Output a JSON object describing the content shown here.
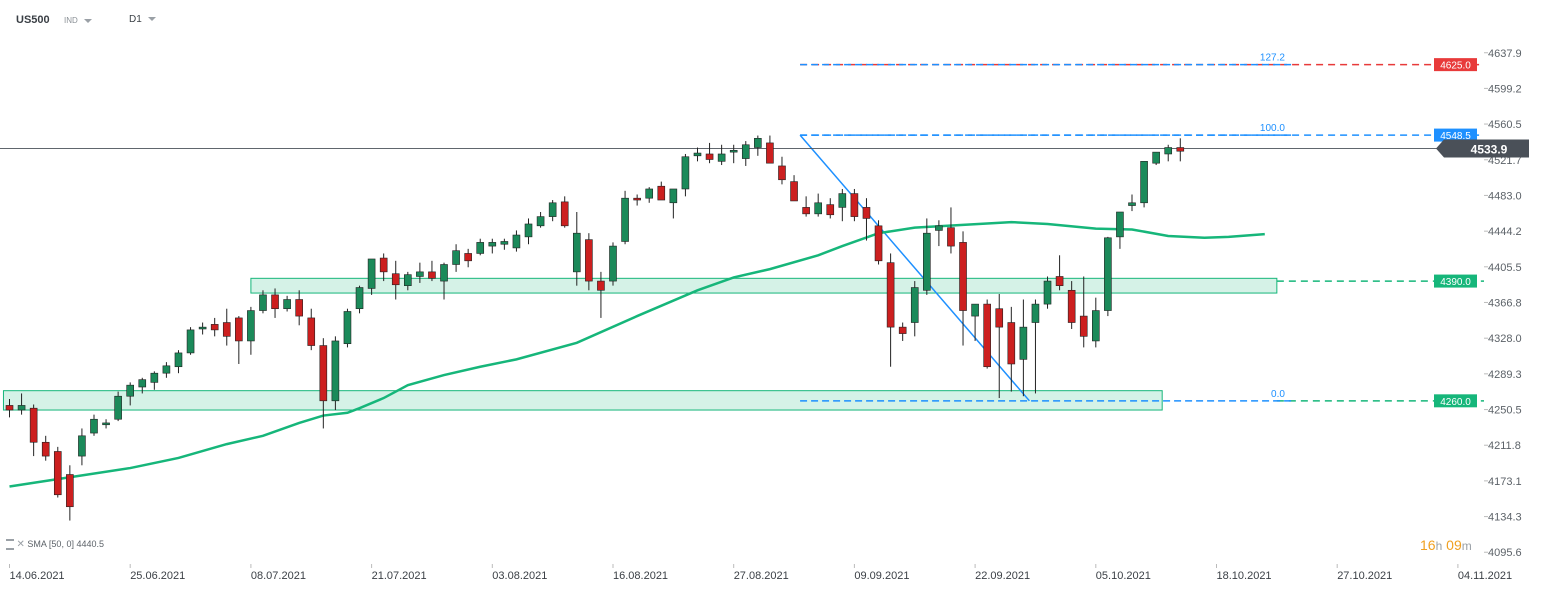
{
  "header": {
    "symbol": "US500",
    "instrument_type": "IND",
    "timeframe": "D1"
  },
  "countdown": {
    "hours": "16",
    "hours_unit": "h",
    "minutes": "09",
    "minutes_unit": "m"
  },
  "sma_legend": {
    "text": "SMA [50, 0] 4440.5"
  },
  "colors": {
    "bull": "#1b8a5a",
    "bear": "#cc1f1f",
    "sma": "#16b67a",
    "fib": "#1e90ff",
    "zone": "#16b67a",
    "red_level": "#e83a3a",
    "current": "#4a5058"
  },
  "chart_data": {
    "type": "candlestick",
    "symbol": "US500",
    "timeframe": "D1",
    "ylim": [
      4085,
      4655
    ],
    "y_ticks": [
      4637.9,
      4599.2,
      4560.5,
      4521.7,
      4483.0,
      4444.2,
      4405.5,
      4366.8,
      4328.0,
      4289.3,
      4250.5,
      4211.8,
      4173.1,
      4134.3,
      4095.6
    ],
    "x_tick_labels": [
      "14.06.2021",
      "25.06.2021",
      "08.07.2021",
      "21.07.2021",
      "03.08.2021",
      "16.08.2021",
      "27.08.2021",
      "09.09.2021",
      "22.09.2021",
      "05.10.2021",
      "18.10.2021",
      "27.10.2021",
      "04.11.2021"
    ],
    "x_tick_index": [
      0,
      10,
      20,
      30,
      40,
      50,
      60,
      70,
      80,
      90,
      100,
      110,
      120
    ],
    "candles": [
      [
        4255,
        4262,
        4242,
        4250
      ],
      [
        4250,
        4268,
        4245,
        4255
      ],
      [
        4252,
        4256,
        4200,
        4215
      ],
      [
        4215,
        4222,
        4195,
        4200
      ],
      [
        4205,
        4210,
        4155,
        4158
      ],
      [
        4180,
        4190,
        4130,
        4145
      ],
      [
        4200,
        4230,
        4190,
        4222
      ],
      [
        4225,
        4245,
        4222,
        4240
      ],
      [
        4234,
        4240,
        4230,
        4236
      ],
      [
        4240,
        4270,
        4238,
        4265
      ],
      [
        4265,
        4280,
        4255,
        4277
      ],
      [
        4275,
        4285,
        4268,
        4283
      ],
      [
        4280,
        4292,
        4272,
        4290
      ],
      [
        4290,
        4302,
        4285,
        4298
      ],
      [
        4297,
        4315,
        4290,
        4312
      ],
      [
        4312,
        4340,
        4310,
        4337
      ],
      [
        4338,
        4345,
        4332,
        4340
      ],
      [
        4343,
        4350,
        4330,
        4337
      ],
      [
        4345,
        4360,
        4320,
        4330
      ],
      [
        4350,
        4352,
        4300,
        4325
      ],
      [
        4325,
        4362,
        4310,
        4358
      ],
      [
        4358,
        4380,
        4355,
        4375
      ],
      [
        4375,
        4382,
        4350,
        4360
      ],
      [
        4360,
        4374,
        4357,
        4370
      ],
      [
        4370,
        4380,
        4342,
        4352
      ],
      [
        4350,
        4360,
        4315,
        4320
      ],
      [
        4320,
        4328,
        4230,
        4260
      ],
      [
        4260,
        4330,
        4250,
        4325
      ],
      [
        4322,
        4360,
        4318,
        4357
      ],
      [
        4360,
        4385,
        4355,
        4383
      ],
      [
        4382,
        4412,
        4375,
        4414
      ],
      [
        4415,
        4420,
        4390,
        4400
      ],
      [
        4398,
        4412,
        4370,
        4386
      ],
      [
        4385,
        4400,
        4380,
        4397
      ],
      [
        4395,
        4410,
        4388,
        4400
      ],
      [
        4400,
        4412,
        4390,
        4393
      ],
      [
        4390,
        4410,
        4370,
        4408
      ],
      [
        4408,
        4430,
        4400,
        4423
      ],
      [
        4420,
        4425,
        4405,
        4412
      ],
      [
        4420,
        4436,
        4418,
        4432
      ],
      [
        4428,
        4436,
        4420,
        4432
      ],
      [
        4430,
        4436,
        4424,
        4433
      ],
      [
        4426,
        4445,
        4422,
        4440
      ],
      [
        4438,
        4458,
        4430,
        4452
      ],
      [
        4450,
        4465,
        4448,
        4460
      ],
      [
        4460,
        4478,
        4455,
        4475
      ],
      [
        4476,
        4482,
        4448,
        4450
      ],
      [
        4400,
        4465,
        4385,
        4442
      ],
      [
        4435,
        4442,
        4380,
        4390
      ],
      [
        4390,
        4400,
        4350,
        4380
      ],
      [
        4390,
        4432,
        4385,
        4428
      ],
      [
        4433,
        4488,
        4430,
        4480
      ],
      [
        4480,
        4484,
        4472,
        4478
      ],
      [
        4480,
        4492,
        4475,
        4490
      ],
      [
        4493,
        4498,
        4478,
        4478
      ],
      [
        4475,
        4485,
        4458,
        4490
      ],
      [
        4490,
        4528,
        4482,
        4525
      ],
      [
        4526,
        4535,
        4520,
        4529
      ],
      [
        4528,
        4540,
        4518,
        4522
      ],
      [
        4520,
        4538,
        4516,
        4528
      ],
      [
        4530,
        4538,
        4518,
        4532
      ],
      [
        4523,
        4542,
        4515,
        4538
      ],
      [
        4535,
        4548,
        4526,
        4545
      ],
      [
        4540,
        4548,
        4518,
        4518
      ],
      [
        4515,
        4525,
        4495,
        4500
      ],
      [
        4498,
        4505,
        4480,
        4477
      ],
      [
        4470,
        4482,
        4460,
        4463
      ],
      [
        4463,
        4485,
        4460,
        4475
      ],
      [
        4473,
        4480,
        4458,
        4462
      ],
      [
        4470,
        4490,
        4455,
        4485
      ],
      [
        4485,
        4490,
        4455,
        4460
      ],
      [
        4470,
        4480,
        4434,
        4458
      ],
      [
        4450,
        4456,
        4408,
        4412
      ],
      [
        4410,
        4420,
        4297,
        4340
      ],
      [
        4340,
        4345,
        4325,
        4333
      ],
      [
        4345,
        4390,
        4330,
        4383
      ],
      [
        4380,
        4458,
        4375,
        4442
      ],
      [
        4445,
        4456,
        4428,
        4450
      ],
      [
        4448,
        4470,
        4420,
        4428
      ],
      [
        4432,
        4444,
        4320,
        4358
      ],
      [
        4352,
        4365,
        4325,
        4365
      ],
      [
        4365,
        4370,
        4295,
        4297
      ],
      [
        4360,
        4376,
        4263,
        4340
      ],
      [
        4345,
        4362,
        4270,
        4300
      ],
      [
        4305,
        4370,
        4265,
        4340
      ],
      [
        4345,
        4370,
        4268,
        4365
      ],
      [
        4365,
        4395,
        4360,
        4390
      ],
      [
        4395,
        4418,
        4380,
        4385
      ],
      [
        4380,
        4390,
        4338,
        4345
      ],
      [
        4352,
        4395,
        4318,
        4330
      ],
      [
        4325,
        4372,
        4318,
        4358
      ],
      [
        4358,
        4438,
        4352,
        4437
      ],
      [
        4438,
        4465,
        4425,
        4465
      ],
      [
        4472,
        4484,
        4466,
        4475
      ],
      [
        4475,
        4520,
        4470,
        4520
      ],
      [
        4518,
        4530,
        4516,
        4530
      ],
      [
        4528,
        4538,
        4520,
        4535
      ],
      [
        4535,
        4545,
        4520,
        4531
      ]
    ],
    "sma": {
      "name": "SMA [50, 0]",
      "value_label": "4440.5",
      "points": [
        [
          0,
          4167
        ],
        [
          5,
          4177
        ],
        [
          10,
          4187
        ],
        [
          14,
          4198
        ],
        [
          18,
          4213
        ],
        [
          21,
          4222
        ],
        [
          24,
          4236
        ],
        [
          26,
          4244
        ],
        [
          28,
          4247
        ],
        [
          29,
          4252
        ],
        [
          31,
          4263
        ],
        [
          33,
          4277
        ],
        [
          36,
          4288
        ],
        [
          39,
          4297
        ],
        [
          42,
          4305
        ],
        [
          47,
          4323
        ],
        [
          52,
          4352
        ],
        [
          57,
          4380
        ],
        [
          60,
          4394
        ],
        [
          63,
          4403
        ],
        [
          67,
          4418
        ],
        [
          69,
          4428
        ],
        [
          72,
          4442
        ],
        [
          75,
          4448
        ],
        [
          79,
          4451
        ],
        [
          83,
          4454
        ],
        [
          86,
          4452
        ],
        [
          90,
          4447
        ],
        [
          93,
          4446
        ],
        [
          96,
          4439
        ],
        [
          99,
          4437
        ],
        [
          101,
          4438
        ],
        [
          104,
          4441
        ]
      ]
    },
    "horizontal_levels": [
      {
        "value": 4625.0,
        "label": "4625.0",
        "color": "#e83a3a",
        "style": "dashed"
      },
      {
        "value": 4548.5,
        "label": "4548.5",
        "color": "#1e90ff",
        "style": "dashed"
      },
      {
        "value": 4390.0,
        "label": "4390.0",
        "color": "#16b67a",
        "style": "dashed"
      },
      {
        "value": 4260.0,
        "label": "4260.0",
        "color": "#16b67a",
        "style": "dashed"
      }
    ],
    "current_price": {
      "value": 4533.9,
      "label": "4533.9"
    },
    "zones": [
      {
        "x_from": -0.5,
        "x_to": 95.5,
        "low": 4250,
        "high": 4271
      },
      {
        "x_from": 20,
        "x_to": 105,
        "low": 4377,
        "high": 4393
      }
    ],
    "fibonacci": {
      "levels": [
        {
          "value": 4625.0,
          "label": "127.2"
        },
        {
          "value": 4548.5,
          "label": "100.0"
        },
        {
          "value": 4260.0,
          "label": "0.0"
        }
      ],
      "x_from": 65.5,
      "x_to": 106.5,
      "swing": {
        "x1": 65.5,
        "y1": 4548.5,
        "x2": 84.5,
        "y2": 4260.0
      }
    }
  }
}
